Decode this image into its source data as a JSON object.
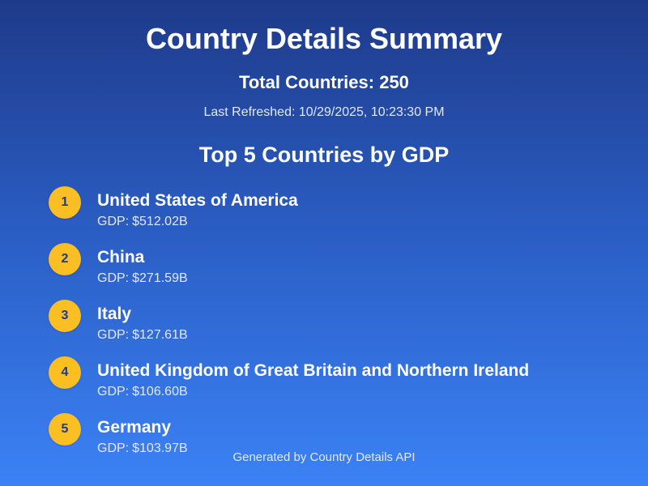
{
  "header": {
    "title": "Country Details Summary",
    "total_countries": "Total Countries: 250",
    "last_refreshed": "Last Refreshed: 10/29/2025, 10:23:30 PM"
  },
  "top_gdp": {
    "heading": "Top 5 Countries by GDP",
    "gdp_label": "GDP:",
    "countries": [
      {
        "rank": "1",
        "name": "United States of America",
        "gdp": "$512.02B"
      },
      {
        "rank": "2",
        "name": "China",
        "gdp": "$271.59B"
      },
      {
        "rank": "3",
        "name": "Italy",
        "gdp": "$127.61B"
      },
      {
        "rank": "4",
        "name": "United Kingdom of Great Britain and Northern Ireland",
        "gdp": "$106.60B"
      },
      {
        "rank": "5",
        "name": "Germany",
        "gdp": "$103.97B"
      }
    ]
  },
  "footer": {
    "text": "Generated by Country Details API"
  },
  "colors": {
    "background_top": "#1e3a8a",
    "background_bottom": "#3b82f6",
    "rank_badge": "#fbbf24",
    "rank_text": "#1e3a8a",
    "text": "#ffffff",
    "muted_text": "#e3e9f8"
  }
}
